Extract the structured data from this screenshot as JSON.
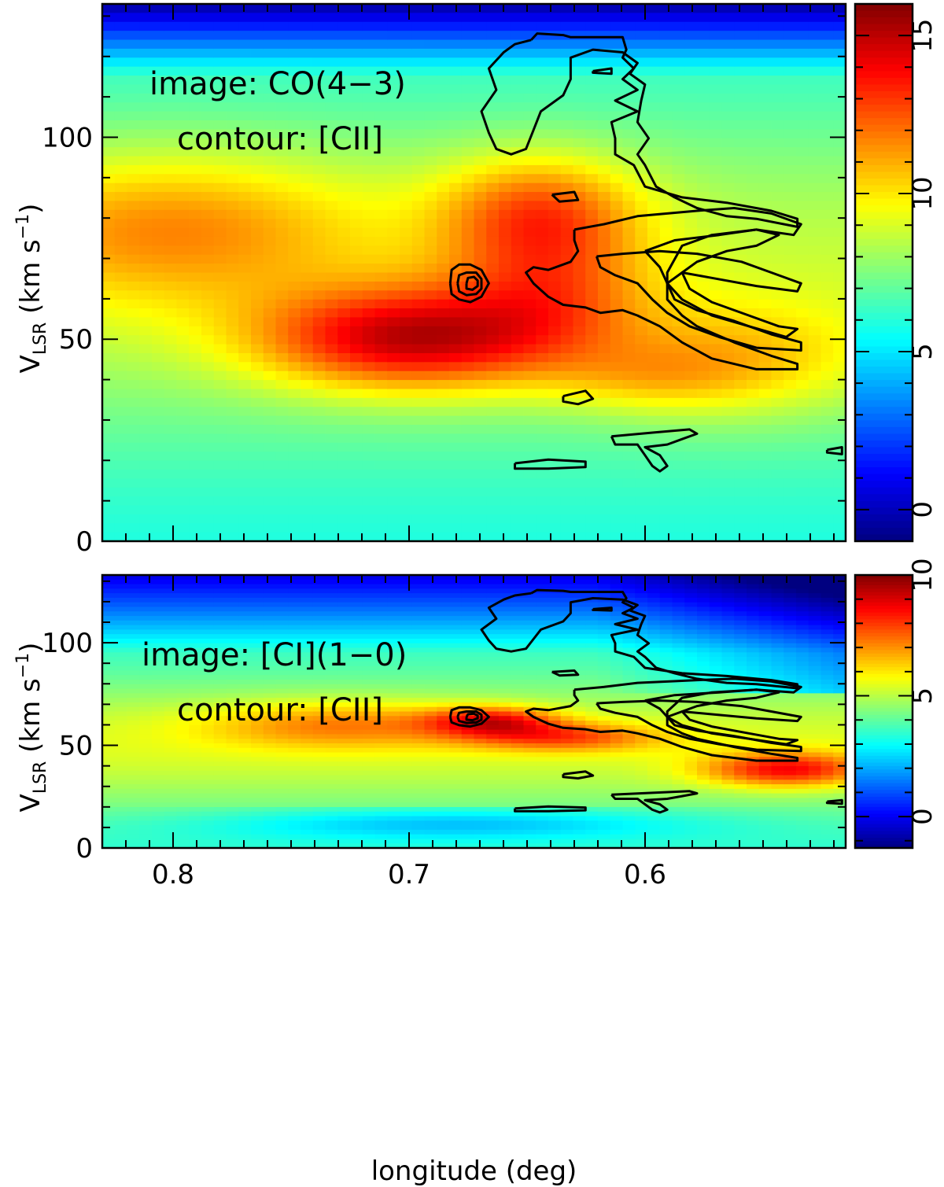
{
  "chart_data": [
    {
      "type": "heatmap",
      "panel": "top",
      "annotation_lines": [
        "image: CO(4−3)",
        "contour: [CII]"
      ],
      "ylabel": {
        "main": "V",
        "sub": "LSR",
        "rest": " (km s",
        "sup": "−1",
        "end": ")"
      },
      "xlim": [
        0.83,
        0.515
      ],
      "ylim": [
        0,
        133
      ],
      "yticks": [
        {
          "v": 0,
          "label": "0"
        },
        {
          "v": 50,
          "label": "50"
        },
        {
          "v": 100,
          "label": "100"
        }
      ],
      "xticks": [
        {
          "v": 0.8,
          "label": ""
        },
        {
          "v": 0.7,
          "label": ""
        },
        {
          "v": 0.6,
          "label": ""
        }
      ],
      "colorbar": {
        "min": -1,
        "max": 16,
        "ticks": [
          {
            "v": 0,
            "label": "0"
          },
          {
            "v": 5,
            "label": "5"
          },
          {
            "v": 10,
            "label": "10"
          },
          {
            "v": 15,
            "label": "15"
          }
        ]
      },
      "emission_features": [
        {
          "l": 0.7,
          "v": 50,
          "sl": 0.045,
          "sv": 9,
          "amp": 6.5
        },
        {
          "l": 0.645,
          "v": 82,
          "sl": 0.03,
          "sv": 10,
          "amp": 4
        },
        {
          "l": 0.8,
          "v": 78,
          "sl": 0.06,
          "sv": 13,
          "amp": 3.2
        },
        {
          "l": 0.64,
          "v": 62,
          "sl": 0.03,
          "sv": 12,
          "amp": 3
        },
        {
          "l": 0.56,
          "v": 45,
          "sl": 0.04,
          "sv": 10,
          "amp": 2.5
        },
        {
          "l": 0.6,
          "v": 40,
          "sl": 0.03,
          "sv": 6,
          "amp": 1.5
        }
      ]
    },
    {
      "type": "heatmap",
      "panel": "bottom",
      "annotation_lines": [
        "image: [CI](1−0)",
        "contour: [CII]"
      ],
      "ylabel": {
        "main": "V",
        "sub": "LSR",
        "rest": " (km s",
        "sup": "−1",
        "end": ")"
      },
      "xlabel": "longitude (deg)",
      "xlim": [
        0.83,
        0.515
      ],
      "ylim": [
        0,
        133
      ],
      "yticks": [
        {
          "v": 0,
          "label": "0"
        },
        {
          "v": 50,
          "label": "50"
        },
        {
          "v": 100,
          "label": "100"
        }
      ],
      "xticks": [
        {
          "v": 0.8,
          "label": "0.8"
        },
        {
          "v": 0.7,
          "label": "0.7"
        },
        {
          "v": 0.6,
          "label": "0.6"
        }
      ],
      "colorbar": {
        "min": -1.3,
        "max": 10,
        "ticks": [
          {
            "v": 0,
            "label": "0"
          },
          {
            "v": 5,
            "label": "5"
          },
          {
            "v": 10,
            "label": "10"
          }
        ]
      },
      "emission_features": [
        {
          "l": 0.665,
          "v": 62,
          "sl": 0.02,
          "sv": 5,
          "amp": 3.2
        },
        {
          "l": 0.635,
          "v": 54,
          "sl": 0.03,
          "sv": 5,
          "amp": 2.5
        },
        {
          "l": 0.54,
          "v": 38,
          "sl": 0.025,
          "sv": 6,
          "amp": 3.5
        },
        {
          "l": 0.73,
          "v": 60,
          "sl": 0.04,
          "sv": 8,
          "amp": 2
        }
      ]
    }
  ]
}
